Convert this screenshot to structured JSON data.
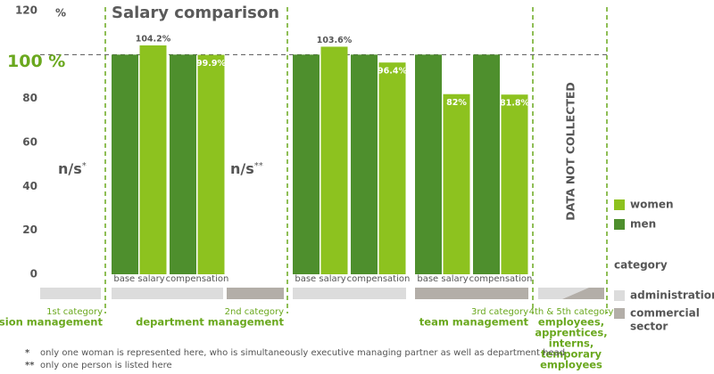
{
  "chart_data": {
    "type": "bar",
    "title": "Salary comparison",
    "y_unit": "%",
    "ylim": [
      0,
      120
    ],
    "yticks": [
      0,
      20,
      40,
      60,
      80,
      {
        "value": 100,
        "label": "100 %"
      },
      120
    ],
    "categories": [
      "base salary",
      "compensation",
      "base salary",
      "compensation",
      "base salary",
      "compensation"
    ],
    "series": [
      {
        "name": "men",
        "color": "#4e8f2d",
        "values": [
          100,
          100,
          100,
          100,
          100,
          100
        ]
      },
      {
        "name": "women",
        "color": "#8dc21f",
        "values": [
          104.2,
          99.9,
          103.6,
          96.4,
          82,
          81.8
        ],
        "value_labels": [
          "104.2%",
          "99.9%",
          "103.6%",
          "96.4%",
          "82%",
          "81.8%"
        ]
      }
    ],
    "not_specified": [
      {
        "text": "n/s",
        "mark": "*"
      },
      {
        "text": "n/s",
        "mark": "**"
      }
    ],
    "not_collected": "DATA NOT COLLECTED",
    "levels": [
      {
        "category": "1st category",
        "name": [
          "division management"
        ]
      },
      {
        "category": "2nd category",
        "name": [
          "department management"
        ]
      },
      {
        "category": "3rd category",
        "name": [
          "team management"
        ]
      },
      {
        "category": "4th & 5th category",
        "name": [
          "employees,",
          "apprentices,",
          "interns,",
          "temporary",
          "employees"
        ]
      }
    ],
    "sector_title": "category",
    "sectors": [
      {
        "name": [
          "administration"
        ],
        "color": "#dcdcdc"
      },
      {
        "name": [
          "commercial",
          "sector"
        ],
        "color": "#b3aea8"
      }
    ],
    "footnotes": [
      {
        "mark": "*",
        "text": "only one woman is represented here, who is simultaneously executive managing partner as well as department head"
      },
      {
        "mark": "**",
        "text": "only one person is listed here"
      }
    ]
  }
}
